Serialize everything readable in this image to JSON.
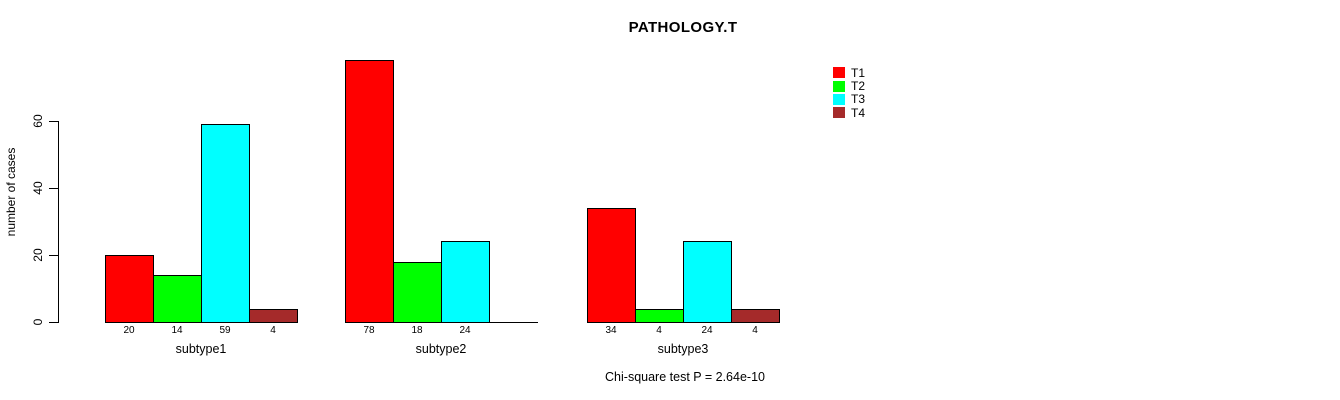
{
  "page": {
    "background": "#FFFFFF",
    "text_color": "#000000",
    "axis_color": "#000000"
  },
  "chart_data": {
    "type": "bar",
    "title": "PATHOLOGY.T",
    "xlabel": "",
    "ylabel": "number of cases",
    "categories": [
      "subtype1",
      "subtype2",
      "subtype3"
    ],
    "series": [
      {
        "name": "T1",
        "color": "#FF0000",
        "values": [
          20,
          78,
          34
        ]
      },
      {
        "name": "T2",
        "color": "#00FF00",
        "values": [
          14,
          18,
          4
        ]
      },
      {
        "name": "T3",
        "color": "#00FFFF",
        "values": [
          59,
          24,
          24
        ]
      },
      {
        "name": "T4",
        "color": "#A52A2A",
        "values": [
          4,
          0,
          4
        ]
      }
    ],
    "bar_value_labels": [
      [
        "20",
        "14",
        "59",
        "4"
      ],
      [
        "78",
        "18",
        "24",
        ""
      ],
      [
        "34",
        "4",
        "24",
        "4"
      ]
    ],
    "y_ticks": [
      0,
      20,
      40,
      60
    ],
    "ylim": [
      0,
      78
    ],
    "grid": false,
    "zero_bar_rendering": "baseline-only",
    "legend": {
      "position": "top-right",
      "entries": [
        {
          "label": "T1",
          "color": "#FF0000"
        },
        {
          "label": "T2",
          "color": "#00FF00"
        },
        {
          "label": "T3",
          "color": "#00FFFF"
        },
        {
          "label": "T4",
          "color": "#A52A2A"
        }
      ]
    },
    "footnote": "Chi-square test P = 2.64e-10"
  }
}
